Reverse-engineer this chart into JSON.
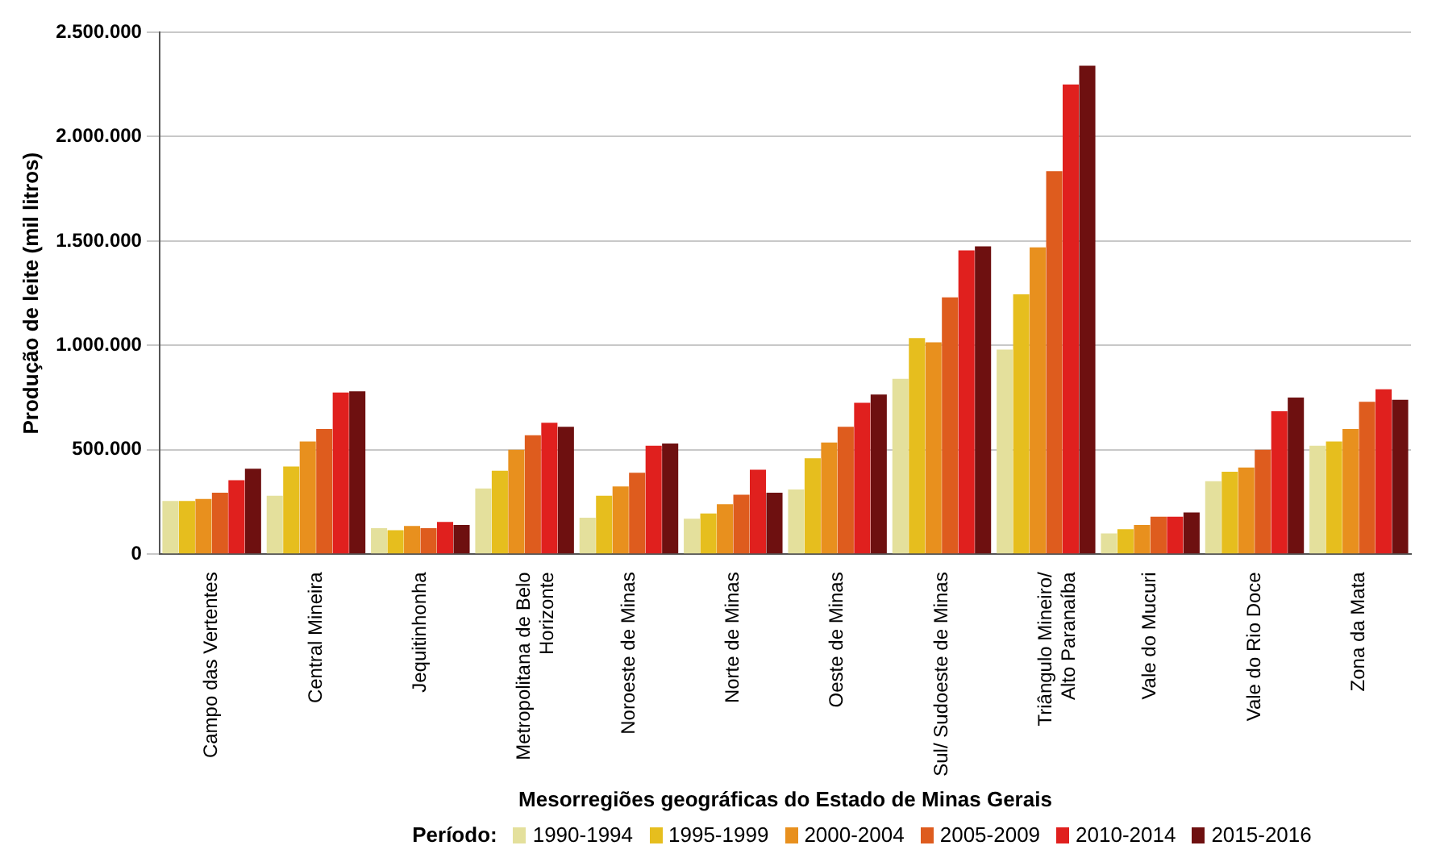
{
  "chart_data": {
    "type": "bar",
    "xlabel": "Mesorregiões geográficas do Estado de Minas Gerais",
    "ylabel": "Produção de leite (mil litros)",
    "legend_title": "Período:",
    "legend": "bottom",
    "grid": "y",
    "categories": [
      "Campo das Vertentes",
      "Central Mineira",
      "Jequitinhonha",
      "Metropolitana de Belo Horizonte",
      "Noroeste de Minas",
      "Norte de Minas",
      "Oeste de Minas",
      "Sul/ Sudoeste de Minas",
      "Triângulo Mineiro/ Alto Paranaíba",
      "Vale do Mucuri",
      "Vale do Rio Doce",
      "Zona da Mata"
    ],
    "ylim": [
      0,
      2500000
    ],
    "yticks": [
      {
        "value": 0,
        "label": "0"
      },
      {
        "value": 500000,
        "label": "500.000"
      },
      {
        "value": 1000000,
        "label": "1.000.000"
      },
      {
        "value": 1500000,
        "label": "1.500.000"
      },
      {
        "value": 2000000,
        "label": "2.000.000"
      },
      {
        "value": 2500000,
        "label": "2.500.000"
      }
    ],
    "series": [
      {
        "name": "1990-1994",
        "color": "#e4e09c",
        "values": [
          255000,
          280000,
          125000,
          315000,
          175000,
          170000,
          310000,
          840000,
          980000,
          100000,
          350000,
          520000
        ]
      },
      {
        "name": "1995-1999",
        "color": "#e6be1e",
        "values": [
          255000,
          420000,
          115000,
          400000,
          280000,
          195000,
          460000,
          1035000,
          1245000,
          120000,
          395000,
          540000
        ]
      },
      {
        "name": "2000-2004",
        "color": "#e8901e",
        "values": [
          265000,
          540000,
          135000,
          500000,
          325000,
          240000,
          535000,
          1015000,
          1470000,
          140000,
          415000,
          600000
        ]
      },
      {
        "name": "2005-2009",
        "color": "#de5c1e",
        "values": [
          295000,
          600000,
          125000,
          570000,
          390000,
          285000,
          610000,
          1230000,
          1835000,
          180000,
          500000,
          730000
        ]
      },
      {
        "name": "2010-2014",
        "color": "#e0201e",
        "values": [
          355000,
          775000,
          155000,
          630000,
          520000,
          405000,
          725000,
          1455000,
          2250000,
          180000,
          685000,
          790000
        ]
      },
      {
        "name": "2015-2016",
        "color": "#6e1010",
        "values": [
          410000,
          780000,
          140000,
          610000,
          530000,
          295000,
          765000,
          1475000,
          2340000,
          200000,
          750000,
          740000
        ]
      }
    ]
  }
}
